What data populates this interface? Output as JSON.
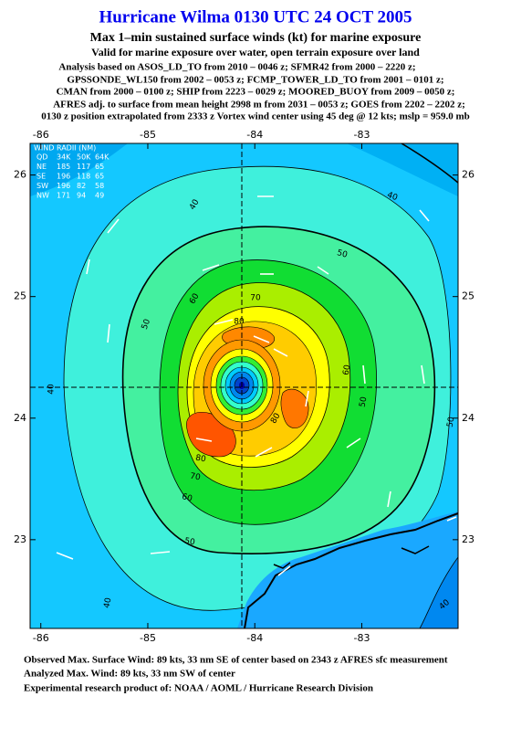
{
  "header": {
    "title": "Hurricane Wilma 0130 UTC 24 OCT 2005",
    "subtitle": "Max 1–min sustained surface winds (kt) for marine exposure",
    "valid": "Valid for marine exposure over water, open terrain exposure over land",
    "analysis": [
      "Analysis based on  ASOS_LD_TO from 2010 – 0046 z;  SFMR42 from 2000 – 2220 z;",
      "GPSSONDE_WL150 from 2002 – 0053 z;  FCMP_TOWER_LD_TO from 2001 – 0101 z;",
      "CMAN from 2000 – 0100 z;  SHIP from 2223 – 0029 z;  MOORED_BUOY from 2009 – 0050 z;",
      "AFRES adj. to surface from mean height 2998 m from 2031 – 0053 z;  GOES from 2202 – 2202 z;",
      "0130 z position extrapolated from 2333 z Vortex wind center using 45 deg @ 12 kts; mslp = 959.0 mb"
    ]
  },
  "map": {
    "xlim": [
      -86.1,
      -82.1
    ],
    "ylim": [
      22.27,
      26.26
    ],
    "xticks": [
      -86,
      -85,
      -84,
      -83
    ],
    "yticks": [
      23,
      24,
      25,
      26
    ],
    "wind_radii": {
      "title": "WIND RADII (NM)",
      "rows": [
        [
          "QD",
          "34K",
          "50K",
          "64K"
        ],
        [
          "NE",
          "185",
          "117",
          "65"
        ],
        [
          "SE",
          "196",
          "118",
          "65"
        ],
        [
          "SW",
          "196",
          "82",
          "58"
        ],
        [
          "NW",
          "171",
          "94",
          "49"
        ]
      ]
    },
    "contour_labels": [
      40,
      40,
      40,
      40,
      40,
      50,
      50,
      50,
      50,
      50,
      60,
      60,
      60,
      70,
      70,
      80,
      80,
      80
    ]
  },
  "footer": [
    "Observed Max. Surface Wind: 89 kts, 33 nm SE of center based on 2343 z AFRES sfc measurement",
    "Analyzed Max. Wind: 89 kts, 33 nm SW of center",
    "Experimental research product of:  NOAA / AOML / Hurricane Research Division"
  ]
}
